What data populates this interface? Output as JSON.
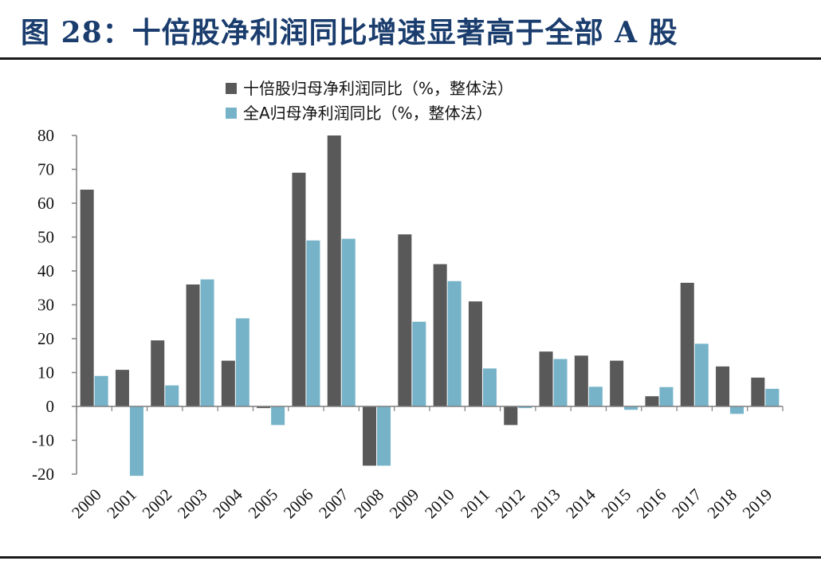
{
  "header": {
    "title": "图 28：十倍股净利润同比增速显著高于全部 A 股"
  },
  "colors": {
    "title": "#1a3d6e",
    "series_dark": "#595959",
    "series_light": "#76b3c8",
    "axis": "#7f7f7f"
  },
  "chart_data": {
    "type": "bar",
    "title": "图 28：十倍股净利润同比增速显著高于全部 A 股",
    "xlabel": "",
    "ylabel": "",
    "categories": [
      "2000",
      "2001",
      "2002",
      "2003",
      "2004",
      "2005",
      "2006",
      "2007",
      "2008",
      "2009",
      "2010",
      "2011",
      "2012",
      "2013",
      "2014",
      "2015",
      "2016",
      "2017",
      "2018",
      "2019"
    ],
    "series": [
      {
        "name": "十倍股归母净利润同比（%，整体法）",
        "values": [
          64,
          10.8,
          19.5,
          36,
          13.5,
          -0.5,
          69,
          80,
          -17.5,
          50.8,
          42,
          31,
          -5.5,
          16.2,
          15,
          13.5,
          3,
          36.5,
          11.8,
          8.5
        ]
      },
      {
        "name": "全A归母净利润同比（%，整体法）",
        "values": [
          9,
          -20.5,
          6.2,
          37.5,
          26,
          -5.5,
          49,
          49.5,
          -17.5,
          25,
          37,
          11.2,
          -0.5,
          14,
          5.8,
          -1,
          5.7,
          18.5,
          -2.2,
          5.2
        ]
      }
    ],
    "yticks": [
      80,
      70,
      60,
      50,
      40,
      30,
      20,
      10,
      0,
      -10,
      -20
    ],
    "ytick_labels": [
      "80",
      "70",
      "60",
      "50",
      "40",
      "30",
      "20",
      "10",
      "0",
      "-10",
      "-20"
    ],
    "ylim": [
      -20,
      80
    ],
    "grid": false,
    "legend_position": "top-left"
  }
}
